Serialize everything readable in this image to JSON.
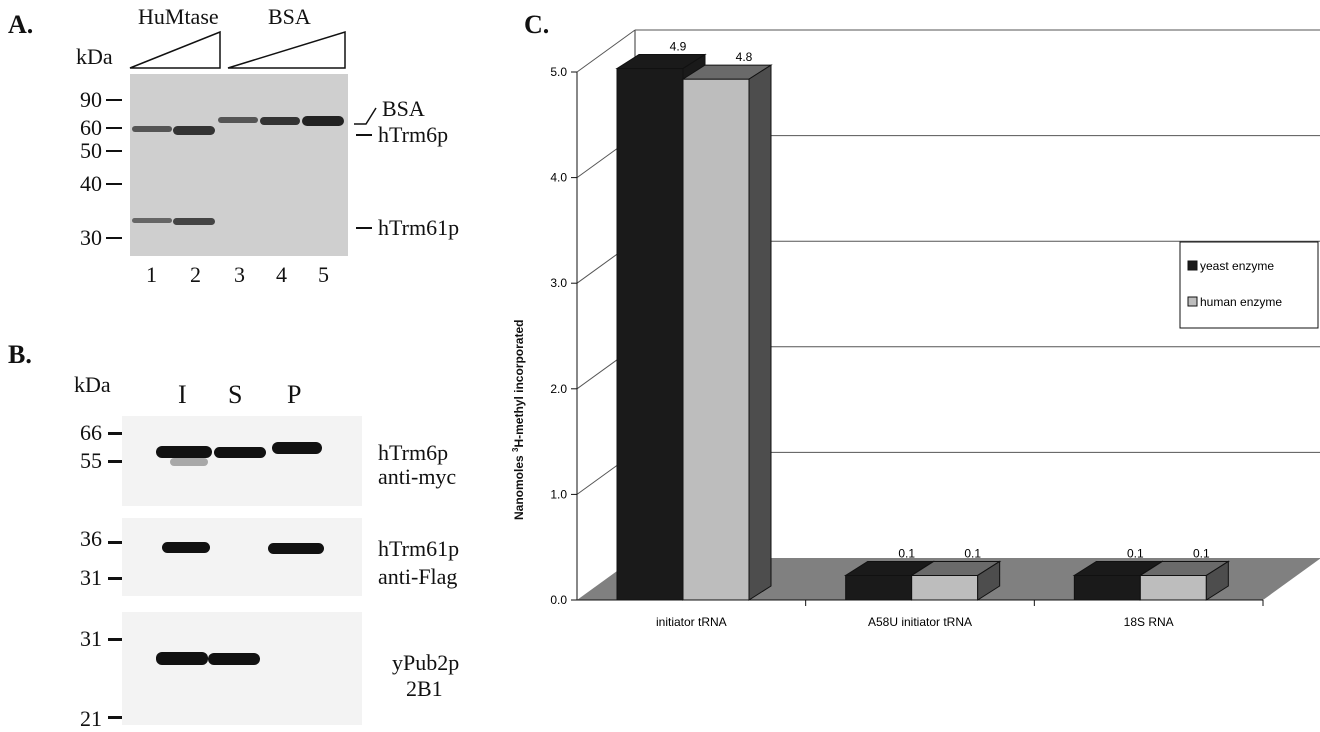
{
  "panel_a": {
    "label": "A.",
    "kda_label": "kDa",
    "group_humtase": "HuMtase",
    "group_bsa": "BSA",
    "mw_markers": [
      "90",
      "60",
      "50",
      "40",
      "30"
    ],
    "lanes": [
      "1",
      "2",
      "3",
      "4",
      "5"
    ],
    "band_labels": [
      "BSA",
      "hTrm6p",
      "hTrm61p"
    ]
  },
  "panel_b": {
    "label": "B.",
    "kda_label": "kDa",
    "fractions": [
      "I",
      "S",
      "P"
    ],
    "blots": [
      {
        "markers": [
          "66",
          "55"
        ],
        "protein": "hTrm6p",
        "antibody": "anti-myc"
      },
      {
        "markers": [
          "36",
          "31"
        ],
        "protein": "hTrm61p",
        "antibody": "anti-Flag"
      },
      {
        "markers": [
          "31",
          "21"
        ],
        "protein": "yPub2p",
        "antibody": "2B1"
      }
    ]
  },
  "panel_c": {
    "label": "C.",
    "ylabel_prefix": "Nanomoles ",
    "ylabel_sup": "3",
    "ylabel_suffix": "H-methyl incorporated",
    "colors": {
      "yeast": "#1a1a1a",
      "human": "#bdbdbd",
      "floor": "#808080"
    }
  },
  "chart_data": {
    "type": "bar",
    "categories": [
      "initiator tRNA",
      "A58U initiator tRNA",
      "18S RNA"
    ],
    "series": [
      {
        "name": "yeast enzyme",
        "values": [
          4.9,
          0.1,
          0.1
        ]
      },
      {
        "name": "human enzyme",
        "values": [
          4.8,
          0.1,
          0.1
        ]
      }
    ],
    "data_labels": [
      [
        "4.9",
        "0.1",
        "0.1"
      ],
      [
        "4.8",
        "0.1",
        "0.1"
      ]
    ],
    "ylim": [
      0,
      5
    ],
    "yticks": [
      "0.0",
      "1.0",
      "2.0",
      "3.0",
      "4.0",
      "5.0"
    ],
    "xlabel": "",
    "ylabel": "Nanomoles 3H-methyl incorporated",
    "grid": true,
    "legend_position": "right",
    "style": "3d"
  }
}
